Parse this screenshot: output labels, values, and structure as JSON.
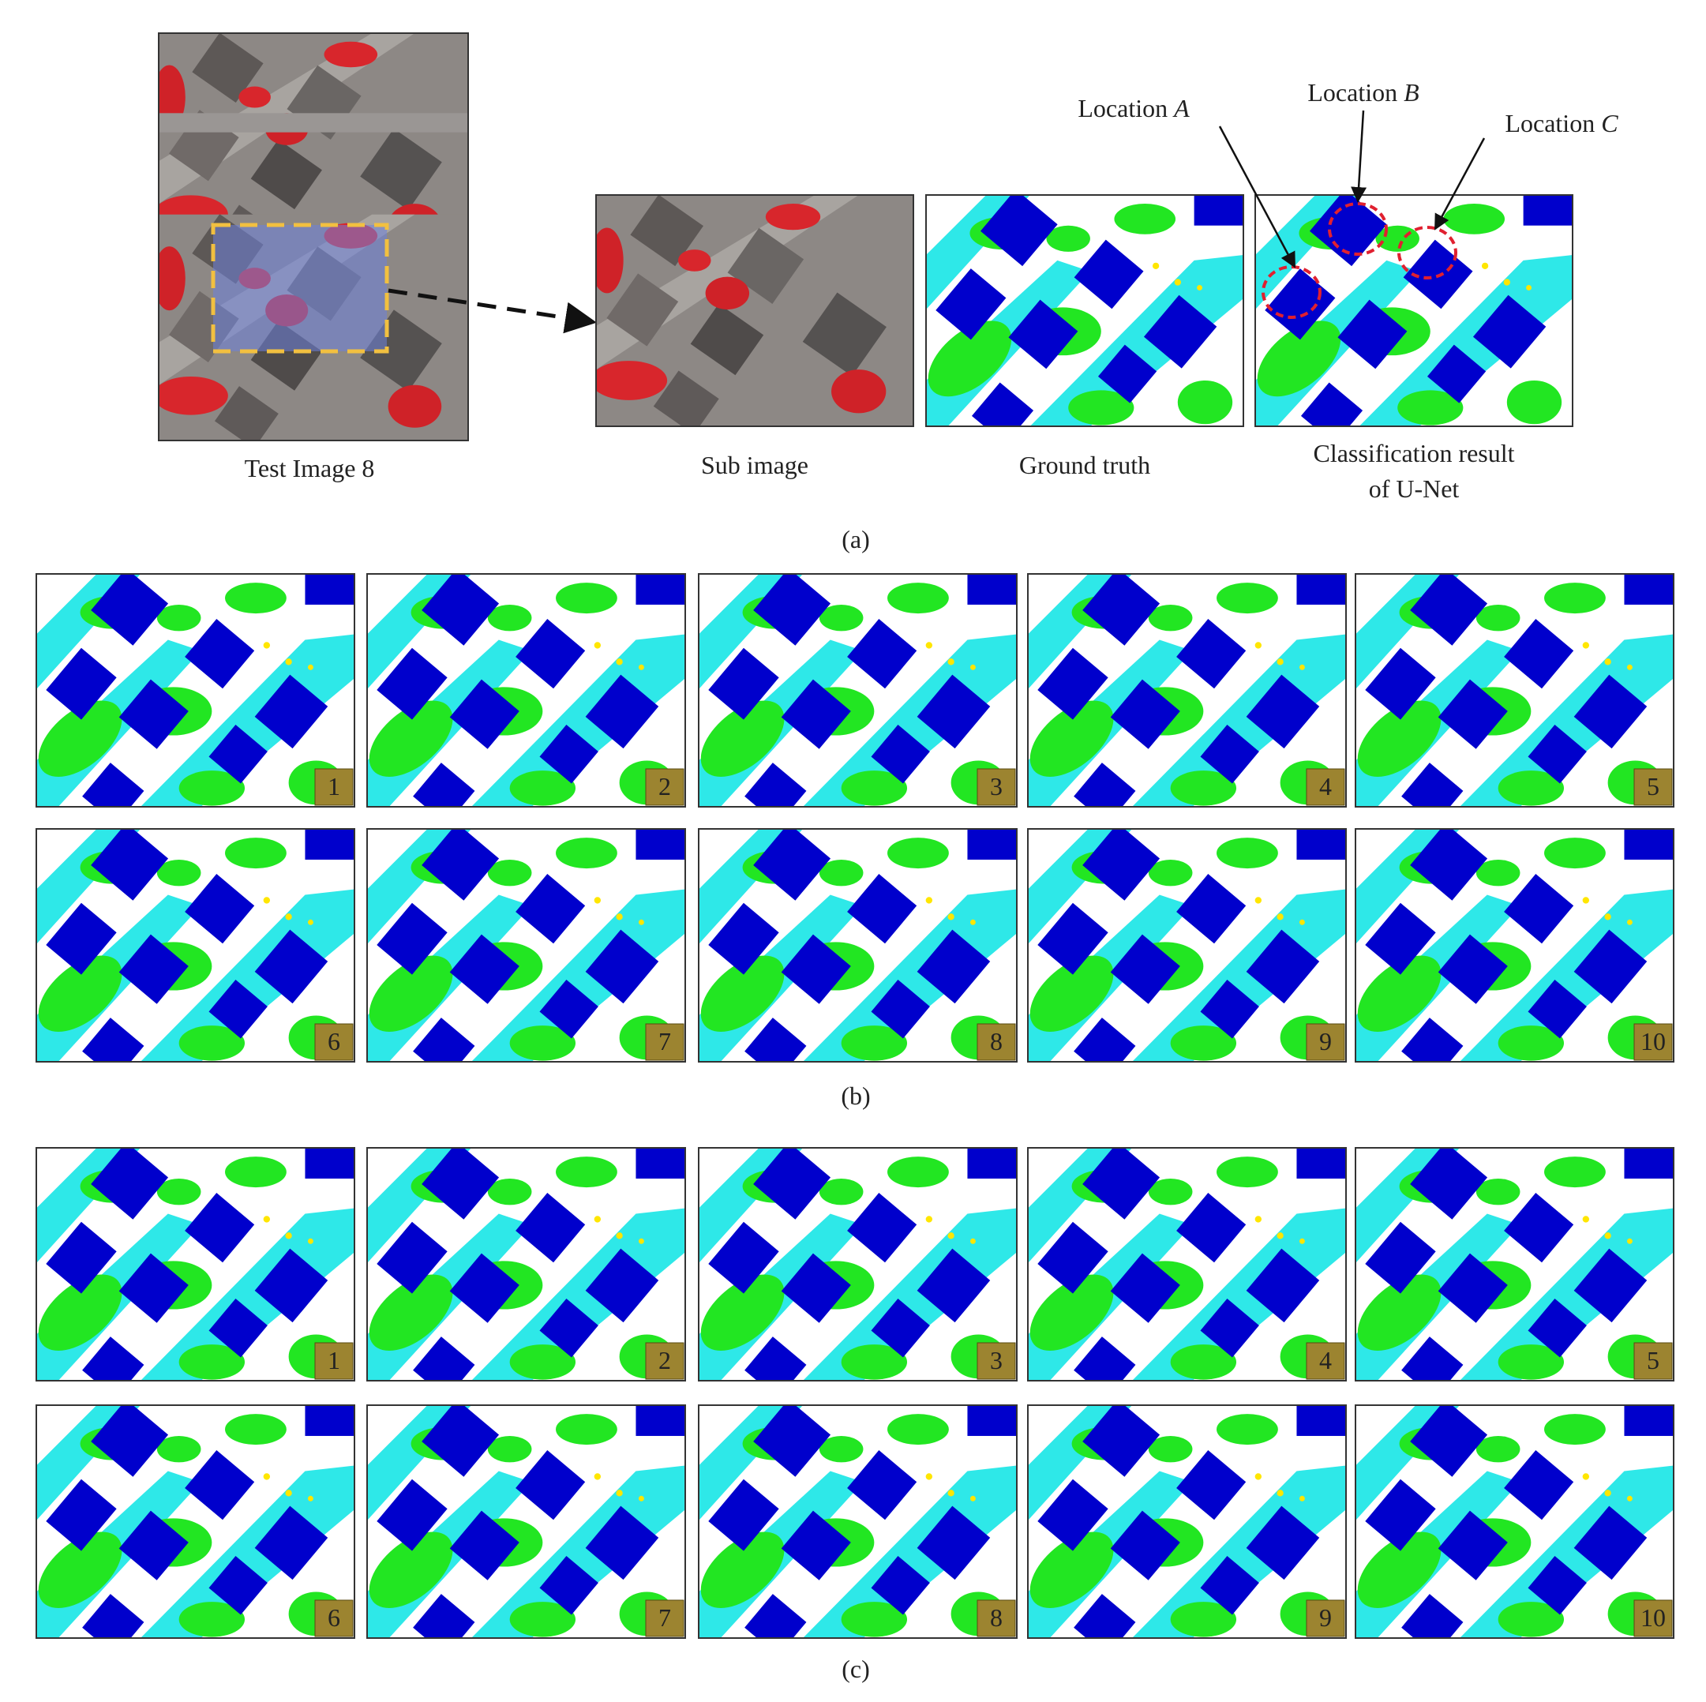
{
  "panel_a": {
    "captions": {
      "test_image": "Test Image 8",
      "sub_image": "Sub image",
      "ground_truth": "Ground truth",
      "classification": [
        "Classification result",
        "of U-Net"
      ]
    },
    "locations": [
      {
        "word": "Location",
        "letter": "A"
      },
      {
        "word": "Location",
        "letter": "B"
      },
      {
        "word": "Location",
        "letter": "C"
      }
    ],
    "label": "(a)"
  },
  "panel_b": {
    "label": "(b)",
    "tiles": [
      1,
      2,
      3,
      4,
      5,
      6,
      7,
      8,
      9,
      10
    ]
  },
  "panel_c": {
    "label": "(c)",
    "tiles": [
      1,
      2,
      3,
      4,
      5,
      6,
      7,
      8,
      9,
      10
    ]
  }
}
